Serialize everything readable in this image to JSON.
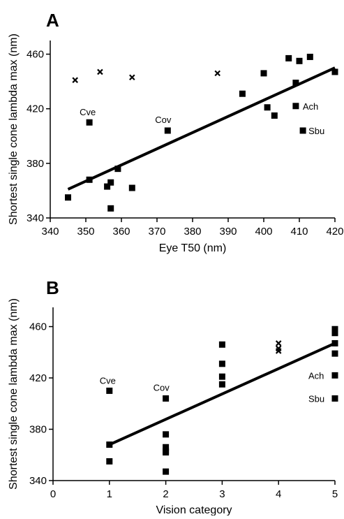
{
  "chart_data": [
    {
      "type": "scatter",
      "panel": "A",
      "xlabel": "Eye T50 (nm)",
      "ylabel": "Shortest single cone lambda max (nm)",
      "xlim": [
        340,
        420
      ],
      "ylim": [
        340,
        470
      ],
      "xticks": [
        340,
        350,
        360,
        370,
        380,
        390,
        400,
        410,
        420
      ],
      "yticks": [
        340,
        380,
        420,
        460
      ],
      "grid": false,
      "series": [
        {
          "marker": "square",
          "points": [
            [
              345,
              355
            ],
            [
              351,
              410
            ],
            [
              351,
              368
            ],
            [
              356,
              363
            ],
            [
              357,
              366
            ],
            [
              357,
              347
            ],
            [
              359,
              376
            ],
            [
              363,
              362
            ],
            [
              373,
              404
            ],
            [
              394,
              431
            ],
            [
              400,
              446
            ],
            [
              401,
              421
            ],
            [
              403,
              415
            ],
            [
              407,
              457
            ],
            [
              409,
              439
            ],
            [
              409,
              422
            ],
            [
              410,
              455
            ],
            [
              411,
              404
            ],
            [
              413,
              458
            ],
            [
              420,
              447
            ]
          ]
        },
        {
          "marker": "cross",
          "points": [
            [
              347,
              441
            ],
            [
              354,
              447
            ],
            [
              363,
              443
            ],
            [
              387,
              446
            ]
          ]
        }
      ],
      "fit_line": [
        [
          345,
          361
        ],
        [
          420,
          450
        ]
      ],
      "annotations": [
        {
          "text": "Cve",
          "x": 351,
          "y": 410
        },
        {
          "text": "Cov",
          "x": 373,
          "y": 404
        },
        {
          "text": "Ach",
          "x": 409,
          "y": 422
        },
        {
          "text": "Sbu",
          "x": 411,
          "y": 404
        }
      ]
    },
    {
      "type": "scatter",
      "panel": "B",
      "xlabel": "Vision category",
      "ylabel": "Shortest single cone lambda max (nm)",
      "xlim": [
        0,
        5
      ],
      "ylim": [
        340,
        475
      ],
      "xticks": [
        0,
        1,
        2,
        3,
        4,
        5
      ],
      "yticks": [
        340,
        380,
        420,
        460
      ],
      "grid": false,
      "series": [
        {
          "marker": "square",
          "points": [
            [
              1,
              410
            ],
            [
              1,
              368
            ],
            [
              1,
              355
            ],
            [
              2,
              404
            ],
            [
              2,
              376
            ],
            [
              2,
              366
            ],
            [
              2,
              363
            ],
            [
              2,
              362
            ],
            [
              2,
              347
            ],
            [
              3,
              446
            ],
            [
              3,
              431
            ],
            [
              3,
              421
            ],
            [
              3,
              415
            ],
            [
              5,
              458
            ],
            [
              5,
              455
            ],
            [
              5,
              447
            ],
            [
              5,
              439
            ],
            [
              5,
              422
            ],
            [
              5,
              404
            ]
          ]
        },
        {
          "marker": "cross",
          "points": [
            [
              4,
              447
            ],
            [
              4,
              443
            ],
            [
              4,
              441
            ]
          ]
        }
      ],
      "fit_line": [
        [
          1,
          368
        ],
        [
          5,
          447
        ]
      ],
      "annotations": [
        {
          "text": "Cve",
          "x": 1,
          "y": 410
        },
        {
          "text": "Cov",
          "x": 2,
          "y": 404
        },
        {
          "text": "Ach",
          "x": 5,
          "y": 422
        },
        {
          "text": "Sbu",
          "x": 5,
          "y": 404
        }
      ]
    }
  ]
}
